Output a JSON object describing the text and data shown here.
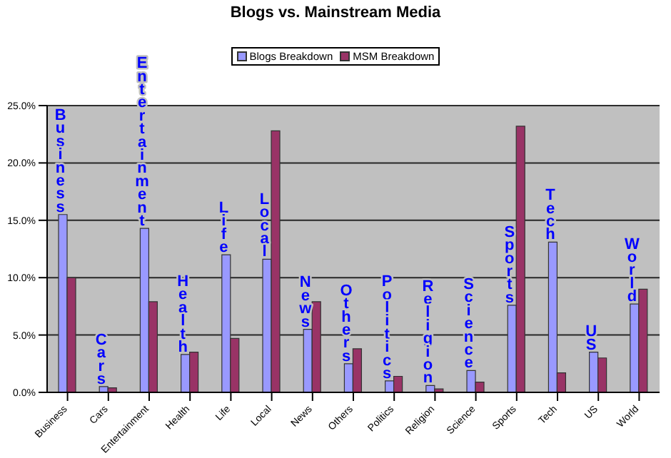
{
  "chart_data": {
    "type": "bar",
    "title": "Blogs vs. Mainstream Media",
    "categories": [
      "Business",
      "Cars",
      "Entertainment",
      "Health",
      "Life",
      "Local",
      "News",
      "Others",
      "Politics",
      "Religion",
      "Science",
      "Sports",
      "Tech",
      "US",
      "World"
    ],
    "series": [
      {
        "name": "Blogs Breakdown",
        "color": "#9999ff",
        "values": [
          15.5,
          0.5,
          14.3,
          3.3,
          12.0,
          11.6,
          5.5,
          2.5,
          1.0,
          0.6,
          1.9,
          7.6,
          13.1,
          3.5,
          7.7
        ]
      },
      {
        "name": "MSM Breakdown",
        "color": "#993366",
        "values": [
          10.0,
          0.4,
          7.9,
          3.5,
          4.7,
          22.8,
          7.9,
          3.8,
          1.4,
          0.3,
          0.9,
          23.2,
          1.7,
          3.0,
          9.0
        ]
      }
    ],
    "ylim": [
      0,
      25
    ],
    "yticks": [
      {
        "value": 0,
        "label": "0.0%"
      },
      {
        "value": 5,
        "label": "5.0%"
      },
      {
        "value": 10,
        "label": "10.0%"
      },
      {
        "value": 15,
        "label": "15.0%"
      },
      {
        "value": 20,
        "label": "20.0%"
      },
      {
        "value": 25,
        "label": "25.0%"
      }
    ],
    "grid": "y",
    "legend": "top",
    "annotations": [
      "Business",
      "Cars",
      "Entertainment",
      "Health",
      "Life",
      "Local",
      "News",
      "Others",
      "Politics",
      "Religion",
      "Science",
      "Sports",
      "Tech",
      "US",
      "World"
    ]
  }
}
